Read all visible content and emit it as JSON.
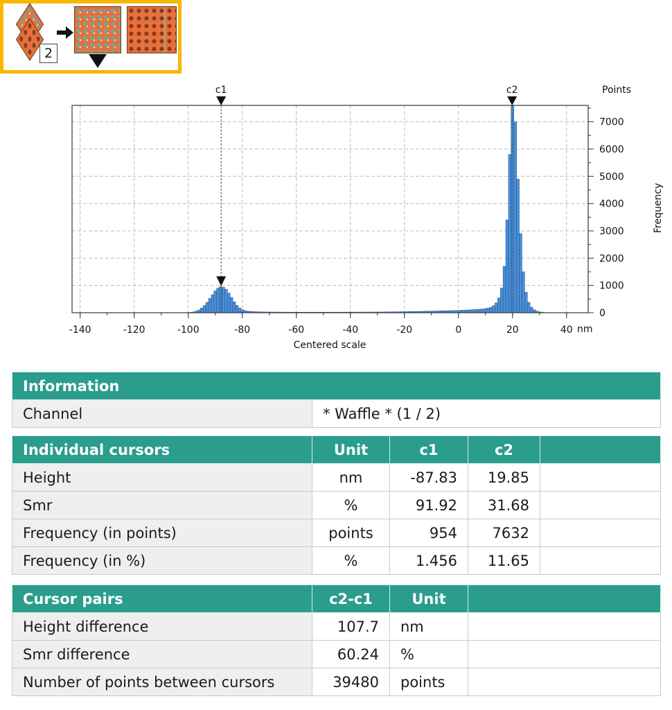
{
  "thumbnails": {
    "badge": "2",
    "icons": [
      "layer-stack-icon",
      "right-arrow-icon",
      "surface-texture-icon",
      "surface-texture-icon",
      "down-triangle-icon"
    ]
  },
  "chart_data": {
    "type": "bar",
    "title": "",
    "xlabel": "Centered scale",
    "x_unit": "nm",
    "ylabel": "Frequency",
    "y_unit": "Points",
    "xlim": [
      -143,
      48
    ],
    "ylim": [
      0,
      7600
    ],
    "xticks": [
      -140,
      -120,
      -100,
      -80,
      -60,
      -40,
      -20,
      0,
      20,
      40
    ],
    "yticks": [
      0,
      1000,
      2000,
      3000,
      4000,
      5000,
      6000,
      7000
    ],
    "grid": true,
    "bar_color": "#4a8fd8",
    "bin_width": 1,
    "bins": [
      [
        -100,
        8
      ],
      [
        -99,
        15
      ],
      [
        -98,
        30
      ],
      [
        -97,
        55
      ],
      [
        -96,
        100
      ],
      [
        -95,
        170
      ],
      [
        -94,
        260
      ],
      [
        -93,
        380
      ],
      [
        -92,
        520
      ],
      [
        -91,
        660
      ],
      [
        -90,
        800
      ],
      [
        -89,
        900
      ],
      [
        -88,
        954
      ],
      [
        -87,
        930
      ],
      [
        -86,
        860
      ],
      [
        -85,
        720
      ],
      [
        -84,
        560
      ],
      [
        -83,
        400
      ],
      [
        -82,
        270
      ],
      [
        -81,
        170
      ],
      [
        -80,
        110
      ],
      [
        -79,
        75
      ],
      [
        -78,
        55
      ],
      [
        -77,
        45
      ],
      [
        -76,
        40
      ],
      [
        -75,
        35
      ],
      [
        -74,
        32
      ],
      [
        -73,
        30
      ],
      [
        -72,
        28
      ],
      [
        -71,
        26
      ],
      [
        -70,
        25
      ],
      [
        -69,
        24
      ],
      [
        -68,
        23
      ],
      [
        -67,
        22
      ],
      [
        -66,
        22
      ],
      [
        -65,
        21
      ],
      [
        -64,
        21
      ],
      [
        -63,
        20
      ],
      [
        -62,
        20
      ],
      [
        -61,
        20
      ],
      [
        -60,
        19
      ],
      [
        -59,
        19
      ],
      [
        -58,
        19
      ],
      [
        -57,
        19
      ],
      [
        -56,
        19
      ],
      [
        -55,
        19
      ],
      [
        -54,
        19
      ],
      [
        -53,
        19
      ],
      [
        -52,
        19
      ],
      [
        -51,
        19
      ],
      [
        -50,
        19
      ],
      [
        -49,
        19
      ],
      [
        -48,
        19
      ],
      [
        -47,
        20
      ],
      [
        -46,
        20
      ],
      [
        -45,
        20
      ],
      [
        -44,
        20
      ],
      [
        -43,
        20
      ],
      [
        -42,
        21
      ],
      [
        -41,
        21
      ],
      [
        -40,
        21
      ],
      [
        -39,
        21
      ],
      [
        -38,
        22
      ],
      [
        -37,
        22
      ],
      [
        -36,
        22
      ],
      [
        -35,
        23
      ],
      [
        -34,
        23
      ],
      [
        -33,
        24
      ],
      [
        -32,
        24
      ],
      [
        -31,
        25
      ],
      [
        -30,
        25
      ],
      [
        -29,
        26
      ],
      [
        -28,
        27
      ],
      [
        -27,
        28
      ],
      [
        -26,
        29
      ],
      [
        -25,
        30
      ],
      [
        -24,
        31
      ],
      [
        -23,
        32
      ],
      [
        -22,
        34
      ],
      [
        -21,
        35
      ],
      [
        -20,
        37
      ],
      [
        -19,
        39
      ],
      [
        -18,
        41
      ],
      [
        -17,
        43
      ],
      [
        -16,
        45
      ],
      [
        -15,
        47
      ],
      [
        -14,
        49
      ],
      [
        -13,
        51
      ],
      [
        -12,
        53
      ],
      [
        -11,
        55
      ],
      [
        -10,
        57
      ],
      [
        -9,
        60
      ],
      [
        -8,
        62
      ],
      [
        -7,
        65
      ],
      [
        -6,
        68
      ],
      [
        -5,
        70
      ],
      [
        -4,
        72
      ],
      [
        -3,
        75
      ],
      [
        -2,
        78
      ],
      [
        -1,
        80
      ],
      [
        0,
        84
      ],
      [
        1,
        88
      ],
      [
        2,
        92
      ],
      [
        3,
        97
      ],
      [
        4,
        102
      ],
      [
        5,
        108
      ],
      [
        6,
        114
      ],
      [
        7,
        120
      ],
      [
        8,
        128
      ],
      [
        9,
        136
      ],
      [
        10,
        150
      ],
      [
        11,
        170
      ],
      [
        12,
        200
      ],
      [
        13,
        260
      ],
      [
        14,
        360
      ],
      [
        15,
        540
      ],
      [
        16,
        900
      ],
      [
        17,
        1700
      ],
      [
        18,
        3400
      ],
      [
        19,
        5800
      ],
      [
        20,
        7632
      ],
      [
        21,
        7000
      ],
      [
        22,
        4900
      ],
      [
        23,
        2900
      ],
      [
        24,
        1500
      ],
      [
        25,
        750
      ],
      [
        26,
        380
      ],
      [
        27,
        200
      ],
      [
        28,
        110
      ],
      [
        29,
        60
      ],
      [
        30,
        30
      ],
      [
        31,
        15
      ],
      [
        32,
        8
      ]
    ],
    "cursors": [
      {
        "name": "c1",
        "x": -87.83,
        "y": 954
      },
      {
        "name": "c2",
        "x": 19.85,
        "y": 7632
      }
    ]
  },
  "information": {
    "header": "Information",
    "channel_label": "Channel",
    "channel_value": "* Waffle * (1 / 2)"
  },
  "individual_cursors": {
    "header": "Individual cursors",
    "col_unit": "Unit",
    "col_c1": "c1",
    "col_c2": "c2",
    "rows": [
      {
        "label": "Height",
        "unit": "nm",
        "c1": "-87.83",
        "c2": "19.85"
      },
      {
        "label": "Smr",
        "unit": "%",
        "c1": "91.92",
        "c2": "31.68"
      },
      {
        "label": "Frequency (in points)",
        "unit": "points",
        "c1": "954",
        "c2": "7632"
      },
      {
        "label": "Frequency (in %)",
        "unit": "%",
        "c1": "1.456",
        "c2": "11.65"
      }
    ]
  },
  "cursor_pairs": {
    "header": "Cursor pairs",
    "col_diff": "c2-c1",
    "col_unit": "Unit",
    "rows": [
      {
        "label": "Height difference",
        "value": "107.7",
        "unit": "nm"
      },
      {
        "label": "Smr difference",
        "value": "60.24",
        "unit": "%"
      },
      {
        "label": "Number of points between cursors",
        "value": "39480",
        "unit": "points"
      }
    ]
  }
}
